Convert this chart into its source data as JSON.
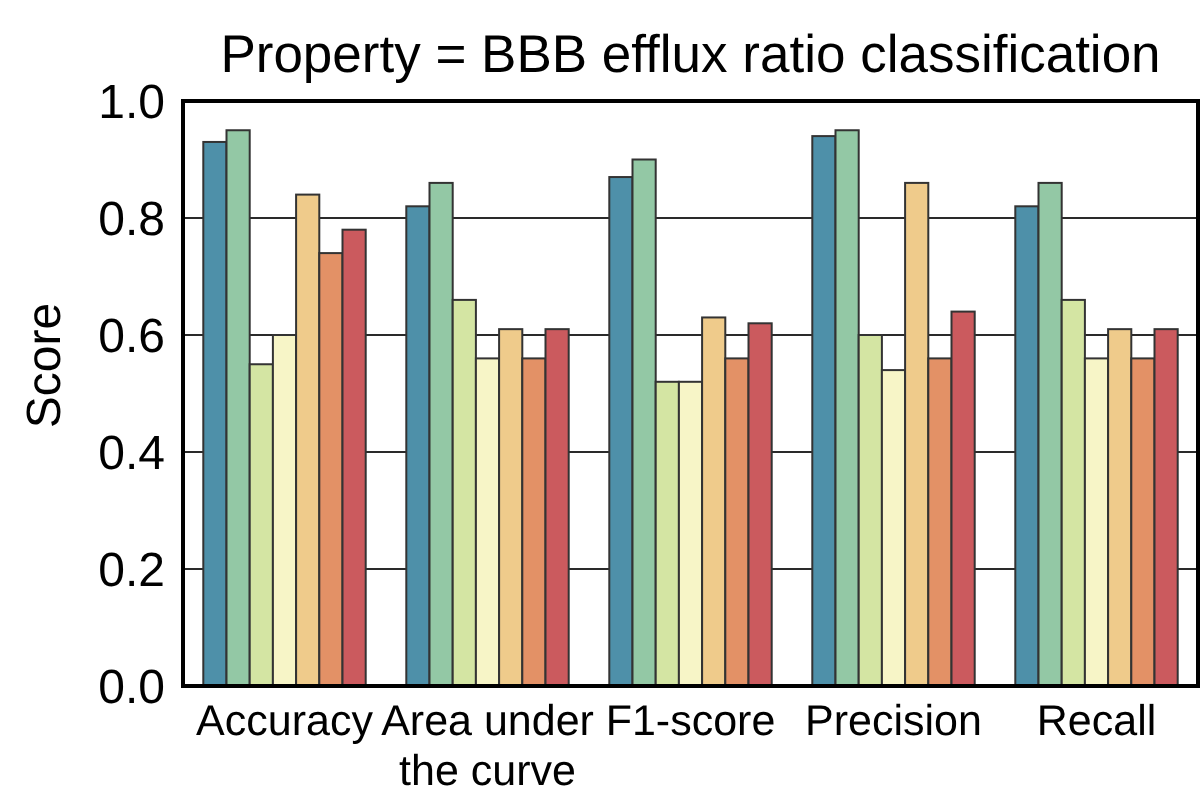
{
  "chart_data": {
    "type": "bar",
    "title": "Property = BBB efflux ratio classification",
    "ylabel": "Score",
    "categories": [
      "Accuracy",
      "Area under the curve",
      "F1-score",
      "Precision",
      "Recall"
    ],
    "series": [
      {
        "color": "#4e90a9",
        "values": [
          0.93,
          0.82,
          0.87,
          0.94,
          0.82
        ]
      },
      {
        "color": "#93c8a5",
        "values": [
          0.95,
          0.86,
          0.9,
          0.95,
          0.86
        ]
      },
      {
        "color": "#d4e5a3",
        "values": [
          0.55,
          0.66,
          0.52,
          0.6,
          0.66
        ]
      },
      {
        "color": "#f7f5c7",
        "values": [
          0.6,
          0.56,
          0.52,
          0.54,
          0.56
        ]
      },
      {
        "color": "#efcb8b",
        "values": [
          0.84,
          0.61,
          0.63,
          0.86,
          0.61
        ]
      },
      {
        "color": "#e39166",
        "values": [
          0.74,
          0.56,
          0.56,
          0.56,
          0.56
        ]
      },
      {
        "color": "#cb5a5e",
        "values": [
          0.78,
          0.61,
          0.62,
          0.64,
          0.61
        ]
      }
    ],
    "ylim": [
      0,
      1
    ],
    "yticks": [
      {
        "value": 0,
        "label": "0.0"
      },
      {
        "value": 0.2,
        "label": "0.2"
      },
      {
        "value": 0.4,
        "label": "0.4"
      },
      {
        "value": 0.6,
        "label": "0.6"
      },
      {
        "value": 0.8,
        "label": "0.8"
      },
      {
        "value": 1,
        "label": "1.0"
      }
    ],
    "grid": "y"
  }
}
